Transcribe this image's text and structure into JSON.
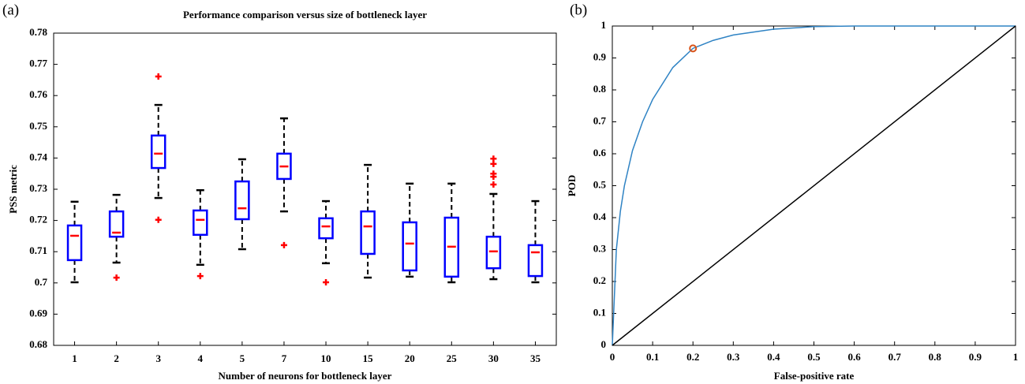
{
  "chart_data": [
    {
      "type": "box",
      "panel_label": "(a)",
      "title": "Performance comparison versus size of bottleneck layer",
      "x_label": "Number of neurons for bottleneck layer",
      "y_label": "PSS metric",
      "categories": [
        "1",
        "2",
        "3",
        "4",
        "5",
        "7",
        "10",
        "15",
        "20",
        "25",
        "30",
        "35"
      ],
      "boxes": [
        {
          "whislo": 0.7002,
          "q1": 0.7073,
          "med": 0.7151,
          "q3": 0.7184,
          "whishi": 0.726,
          "fliers": []
        },
        {
          "whislo": 0.7065,
          "q1": 0.7148,
          "med": 0.7161,
          "q3": 0.7229,
          "whishi": 0.7282,
          "fliers": [
            0.7017
          ]
        },
        {
          "whislo": 0.7272,
          "q1": 0.7368,
          "med": 0.7414,
          "q3": 0.7472,
          "whishi": 0.757,
          "fliers": [
            0.7661,
            0.7202
          ]
        },
        {
          "whislo": 0.7058,
          "q1": 0.7154,
          "med": 0.7202,
          "q3": 0.7232,
          "whishi": 0.7297,
          "fliers": [
            0.7022
          ]
        },
        {
          "whislo": 0.7108,
          "q1": 0.7204,
          "med": 0.7239,
          "q3": 0.7325,
          "whishi": 0.7396,
          "fliers": []
        },
        {
          "whislo": 0.7229,
          "q1": 0.7333,
          "med": 0.7373,
          "q3": 0.7414,
          "whishi": 0.7527,
          "fliers": [
            0.7121
          ]
        },
        {
          "whislo": 0.7063,
          "q1": 0.7143,
          "med": 0.7181,
          "q3": 0.7207,
          "whishi": 0.7262,
          "fliers": [
            0.7002
          ]
        },
        {
          "whislo": 0.7017,
          "q1": 0.7093,
          "med": 0.7181,
          "q3": 0.7229,
          "whishi": 0.7378,
          "fliers": []
        },
        {
          "whislo": 0.702,
          "q1": 0.704,
          "med": 0.7126,
          "q3": 0.7194,
          "whishi": 0.7318,
          "fliers": []
        },
        {
          "whislo": 0.7002,
          "q1": 0.702,
          "med": 0.7116,
          "q3": 0.7209,
          "whishi": 0.7318,
          "fliers": []
        },
        {
          "whislo": 0.7012,
          "q1": 0.7047,
          "med": 0.7101,
          "q3": 0.7148,
          "whishi": 0.7285,
          "fliers": [
            0.7398,
            0.7381,
            0.735,
            0.734,
            0.7315
          ]
        },
        {
          "whislo": 0.7002,
          "q1": 0.7022,
          "med": 0.7098,
          "q3": 0.7121,
          "whishi": 0.7262,
          "fliers": []
        }
      ],
      "box_color": "#0000ff",
      "median_color": "#ff0000",
      "flier_color": "#ff0000",
      "whisker_color": "#000000",
      "ylim": [
        0.68,
        0.78
      ],
      "yticks": [
        0.68,
        0.69,
        0.7,
        0.71,
        0.72,
        0.73,
        0.74,
        0.75,
        0.76,
        0.77,
        0.78
      ]
    },
    {
      "type": "line",
      "panel_label": "(b)",
      "x_label": "False-positive rate",
      "y_label": "POD",
      "series": [
        {
          "color": "#2f83c4",
          "x": [
            0,
            0.005,
            0.01,
            0.02,
            0.03,
            0.05,
            0.075,
            0.1,
            0.15,
            0.2,
            0.25,
            0.3,
            0.4,
            0.5,
            0.6,
            1
          ],
          "values": [
            0,
            0.15,
            0.3,
            0.42,
            0.5,
            0.61,
            0.7,
            0.77,
            0.87,
            0.93,
            0.955,
            0.972,
            0.99,
            0.998,
            1,
            1
          ]
        },
        {
          "color": "#000000",
          "x": [
            0,
            1
          ],
          "values": [
            0,
            1
          ]
        }
      ],
      "marker": {
        "x": 0.2,
        "y": 0.93,
        "color": "#d9541a"
      },
      "xlim": [
        0,
        1
      ],
      "ylim": [
        0,
        1
      ],
      "xticks": [
        0,
        0.1,
        0.2,
        0.3,
        0.4,
        0.5,
        0.6,
        0.7,
        0.8,
        0.9,
        1
      ],
      "yticks": [
        0,
        0.1,
        0.2,
        0.3,
        0.4,
        0.5,
        0.6,
        0.7,
        0.8,
        0.9,
        1
      ]
    }
  ]
}
